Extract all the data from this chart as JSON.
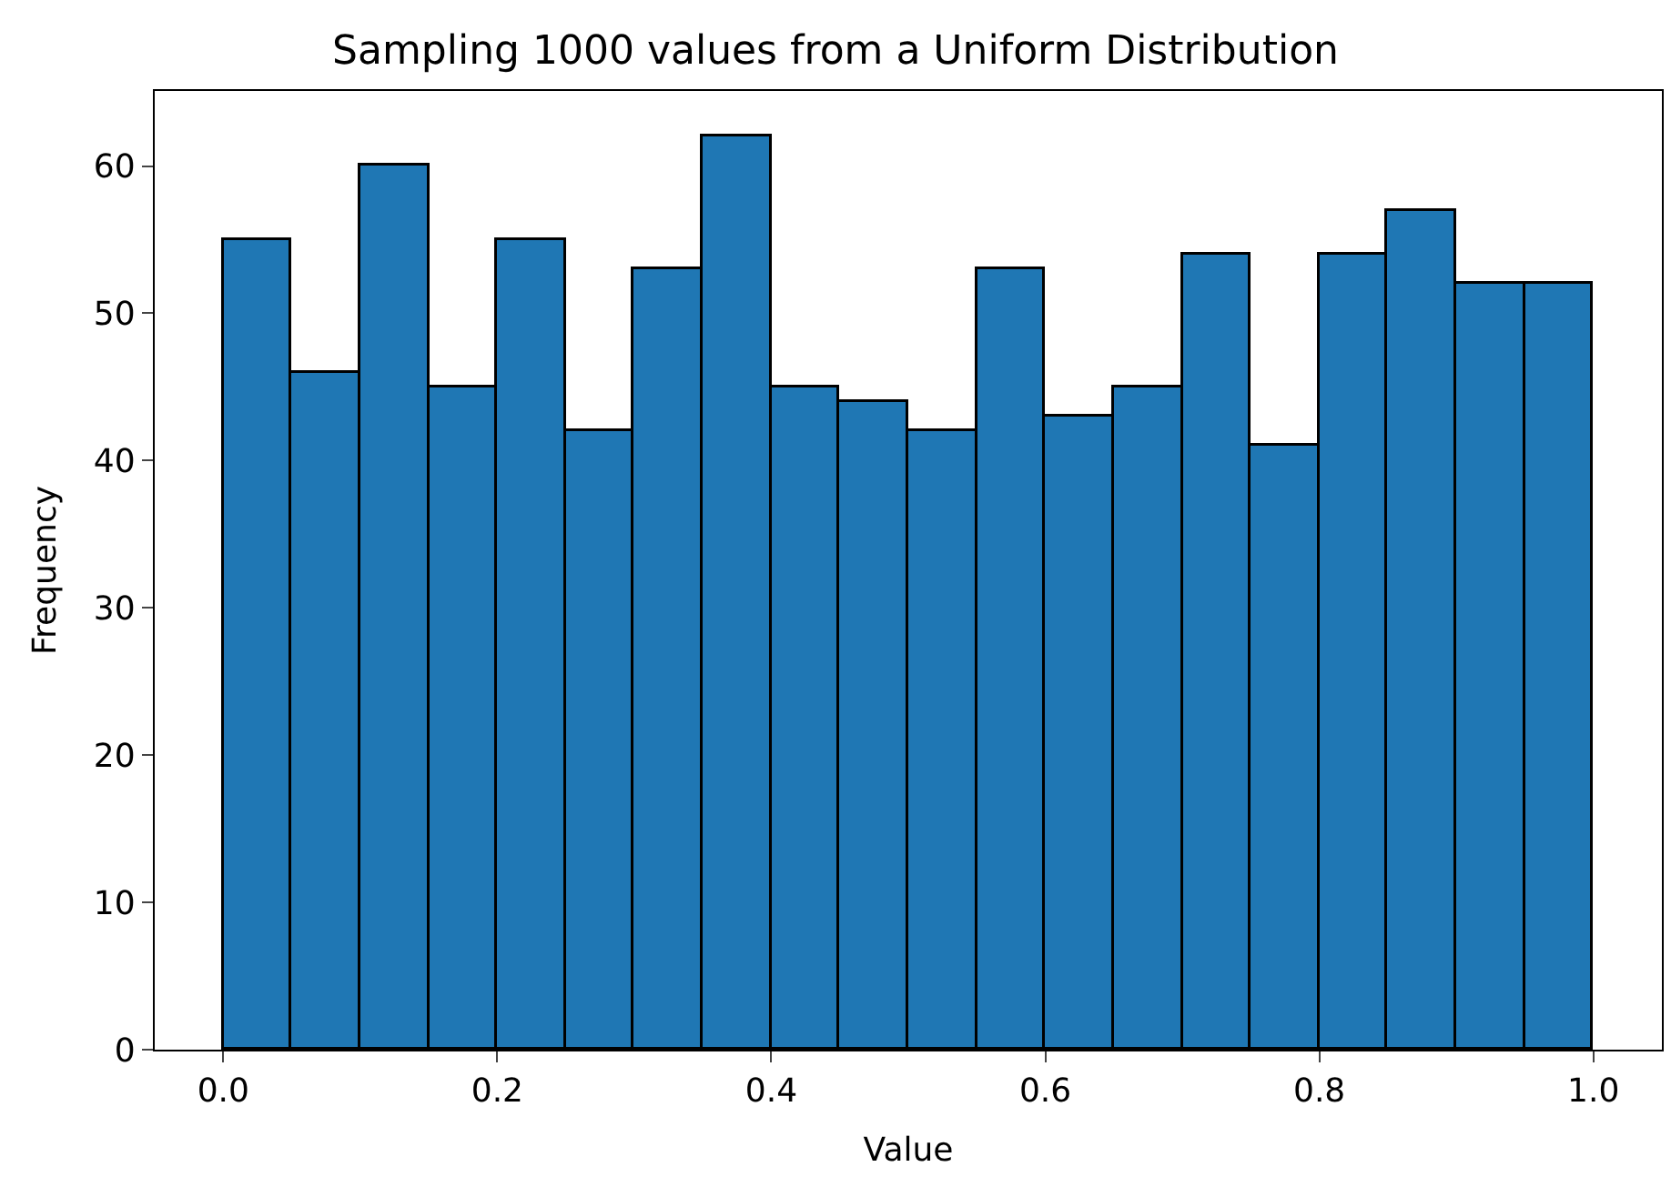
{
  "chart_data": {
    "type": "histogram",
    "title": "Sampling 1000 values from a Uniform Distribution",
    "xlabel": "Value",
    "ylabel": "Frequency",
    "bins": [
      0.0,
      0.05,
      0.1,
      0.15,
      0.2,
      0.25,
      0.3,
      0.35,
      0.4,
      0.45,
      0.5,
      0.55,
      0.6,
      0.65,
      0.7,
      0.75,
      0.8,
      0.85,
      0.9,
      0.95,
      1.0
    ],
    "values": [
      55,
      46,
      60,
      45,
      55,
      42,
      53,
      62,
      45,
      44,
      42,
      53,
      43,
      45,
      54,
      41,
      54,
      57,
      52,
      52
    ],
    "color": "#1f77b4",
    "xlim": [
      -0.05,
      1.05
    ],
    "xticks": [
      {
        "value": 0,
        "label": "0.0"
      },
      0.2,
      0.4,
      0.6,
      0.8,
      {
        "value": 1,
        "label": "1.0"
      }
    ],
    "ylim": [
      0,
      65.1
    ],
    "yticks": [
      0,
      10,
      20,
      30,
      40,
      50,
      60
    ]
  }
}
